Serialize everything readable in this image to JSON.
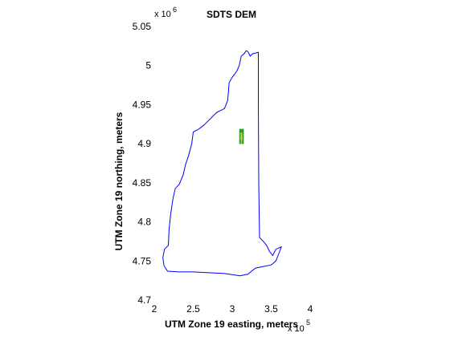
{
  "chart_data": {
    "type": "map",
    "title": "SDTS DEM",
    "xlabel": "UTM Zone 19 easting, meters",
    "ylabel": "UTM Zone 19 northing, meters",
    "x_multiplier": "x 10",
    "x_exponent": "5",
    "y_multiplier": "x 10",
    "y_exponent": "6",
    "xlim": [
      2.0,
      4.0
    ],
    "ylim": [
      4.7,
      5.05
    ],
    "x_ticks": [
      2.0,
      2.5,
      3.0,
      3.5,
      4.0
    ],
    "x_tick_labels": [
      "2",
      "2.5",
      "3",
      "3.5",
      "4"
    ],
    "y_ticks": [
      4.7,
      4.75,
      4.8,
      4.85,
      4.9,
      4.95,
      5.0,
      5.05
    ],
    "y_tick_labels": [
      "4.7",
      "4.75",
      "4.8",
      "4.85",
      "4.9",
      "4.95",
      "5",
      "5.05"
    ],
    "boundary_color": "#0000ff",
    "boundary": [
      [
        3.115,
        5.012
      ],
      [
        3.15,
        5.015
      ],
      [
        3.18,
        5.019
      ],
      [
        3.2,
        5.018
      ],
      [
        3.23,
        5.012
      ],
      [
        3.26,
        5.015
      ],
      [
        3.3,
        5.016
      ],
      [
        3.335,
        5.017
      ],
      [
        3.335,
        4.95
      ],
      [
        3.34,
        4.85
      ],
      [
        3.35,
        4.78
      ],
      [
        3.4,
        4.775
      ],
      [
        3.44,
        4.77
      ],
      [
        3.48,
        4.762
      ],
      [
        3.52,
        4.757
      ],
      [
        3.56,
        4.765
      ],
      [
        3.63,
        4.768
      ],
      [
        3.6,
        4.76
      ],
      [
        3.56,
        4.75
      ],
      [
        3.5,
        4.745
      ],
      [
        3.4,
        4.743
      ],
      [
        3.3,
        4.741
      ],
      [
        3.26,
        4.738
      ],
      [
        3.2,
        4.733
      ],
      [
        3.1,
        4.731
      ],
      [
        2.9,
        4.734
      ],
      [
        2.7,
        4.735
      ],
      [
        2.5,
        4.736
      ],
      [
        2.32,
        4.736
      ],
      [
        2.17,
        4.737
      ],
      [
        2.125,
        4.744
      ],
      [
        2.11,
        4.754
      ],
      [
        2.13,
        4.765
      ],
      [
        2.18,
        4.77
      ],
      [
        2.19,
        4.79
      ],
      [
        2.21,
        4.81
      ],
      [
        2.24,
        4.83
      ],
      [
        2.27,
        4.843
      ],
      [
        2.32,
        4.848
      ],
      [
        2.37,
        4.86
      ],
      [
        2.4,
        4.873
      ],
      [
        2.44,
        4.885
      ],
      [
        2.48,
        4.9
      ],
      [
        2.5,
        4.915
      ],
      [
        2.56,
        4.918
      ],
      [
        2.6,
        4.921
      ],
      [
        2.65,
        4.925
      ],
      [
        2.72,
        4.932
      ],
      [
        2.8,
        4.94
      ],
      [
        2.9,
        4.945
      ],
      [
        2.94,
        4.955
      ],
      [
        2.95,
        4.965
      ],
      [
        2.96,
        4.978
      ],
      [
        3.0,
        4.985
      ],
      [
        3.06,
        4.993
      ],
      [
        3.09,
        5.0
      ],
      [
        3.115,
        5.012
      ]
    ],
    "dem_tile": {
      "x_range": [
        3.09,
        3.145
      ],
      "y_range": [
        4.9,
        4.919
      ],
      "cells": [
        [
          "#2a9a2a",
          "#2f9e2c",
          "#3aa330",
          "#2a9a2a",
          "#289a28"
        ],
        [
          "#3aa330",
          "#6ab84a",
          "#e8d040",
          "#6ab84a",
          "#2f9e2c"
        ],
        [
          "#2f9e2c",
          "#7fbf5a",
          "#f0c040",
          "#8fc860",
          "#2a9a2a"
        ],
        [
          "#289a28",
          "#3aa330",
          "#b8d860",
          "#3aa330",
          "#2f9e2c"
        ]
      ]
    }
  }
}
